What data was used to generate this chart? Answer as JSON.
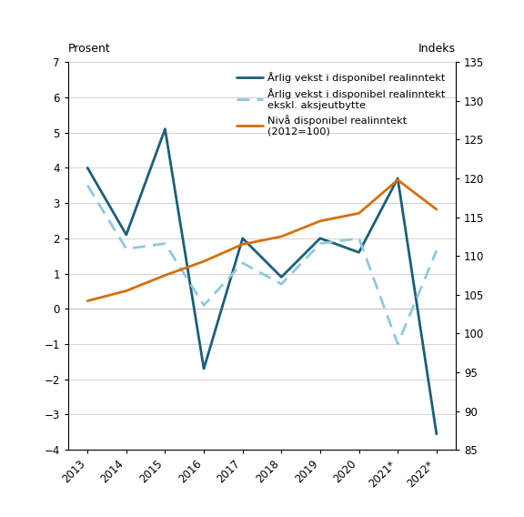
{
  "years": [
    2013,
    2014,
    2015,
    2016,
    2017,
    2018,
    2019,
    2020,
    2021,
    2022
  ],
  "x_labels": [
    "2013",
    "2014",
    "2015",
    "2016",
    "2017",
    "2018",
    "2019",
    "2020",
    "2021*",
    "2022*"
  ],
  "annual_growth": [
    4.0,
    2.1,
    5.1,
    -1.7,
    2.0,
    0.9,
    2.0,
    1.6,
    3.7,
    -3.55
  ],
  "annual_growth_excl": [
    3.5,
    1.7,
    1.85,
    0.1,
    1.3,
    0.7,
    1.85,
    2.0,
    -1.0,
    1.65
  ],
  "level": [
    104.2,
    105.5,
    107.5,
    109.3,
    111.5,
    112.5,
    114.5,
    115.5,
    119.8,
    116.0
  ],
  "color_growth": "#1a5f7a",
  "color_growth_excl": "#8dc8e0",
  "color_level": "#d4700a",
  "left_ylim": [
    -4,
    7
  ],
  "right_ylim": [
    85,
    135
  ],
  "left_yticks": [
    -4,
    -3,
    -2,
    -1,
    0,
    1,
    2,
    3,
    4,
    5,
    6,
    7
  ],
  "right_yticks": [
    85,
    90,
    95,
    100,
    105,
    110,
    115,
    120,
    125,
    130,
    135
  ],
  "left_label": "Prosent",
  "right_label": "Indeks",
  "legend1": "Årlig vekst i disponibel realinntekt",
  "legend2": "Årlig vekst i disponibel realinntekt\nekskl. aksjeutbytte",
  "legend3": "Nivå disponibel realinntekt\n(2012=100)"
}
